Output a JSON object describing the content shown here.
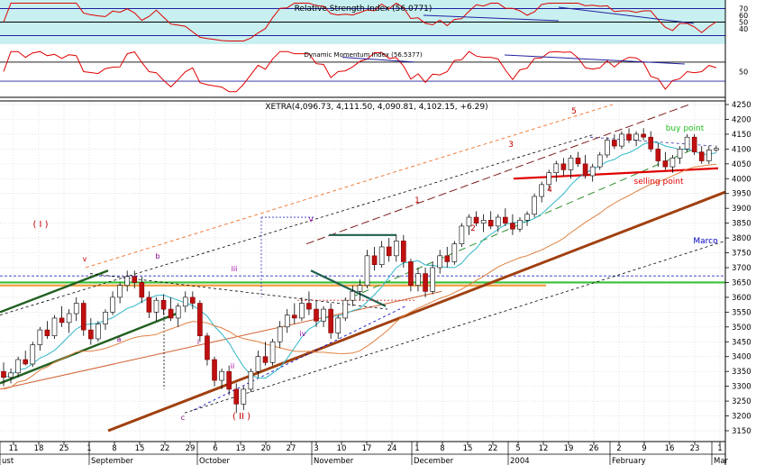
{
  "chart_data": [
    {
      "type": "line",
      "title": "Relative Strength Index (56.0771)",
      "value": 56.0771,
      "yticks": [
        70,
        60,
        50,
        40
      ],
      "ylim": [
        20,
        80
      ],
      "upper_band": 70,
      "lower_band": 30
    },
    {
      "type": "line",
      "title": "Dynamic Momentum Index (56.5377)",
      "value": 56.5377,
      "yticks": [
        50
      ],
      "ylim": [
        0,
        100
      ],
      "upper_band": 70,
      "lower_band": 30
    },
    {
      "type": "candlestick",
      "title": "XETRA(4,096.73, 4,111.50, 4,090.81, 4,102.15, +6.29)",
      "last": {
        "open": 4096.73,
        "high": 4111.5,
        "low": 4090.81,
        "close": 4102.15,
        "change": 6.29
      },
      "ylim": [
        3150,
        4250
      ],
      "yticks": [
        3150,
        3200,
        3250,
        3300,
        3350,
        3400,
        3450,
        3500,
        3550,
        3600,
        3650,
        3700,
        3750,
        3800,
        3850,
        3900,
        3950,
        4000,
        4050,
        4100,
        4150,
        4200,
        4250
      ],
      "xticks": [
        "11",
        "18",
        "25",
        "1",
        "8",
        "15",
        "22",
        "29",
        "6",
        "13",
        "20",
        "27",
        "3",
        "10",
        "17",
        "24",
        "1",
        "8",
        "15",
        "22",
        "5",
        "12",
        "19",
        "26",
        "2",
        "9",
        "16",
        "23",
        "1"
      ],
      "month_labels": [
        "ust",
        "September",
        "October",
        "November",
        "December",
        "2004",
        "February",
        "Mar"
      ],
      "annotations": [
        "( I )",
        "( II )",
        "v",
        "b",
        "a",
        "c",
        "i",
        "ii",
        "iii",
        "iv",
        "v",
        "1",
        "2",
        "3",
        "4",
        "5",
        "buy point",
        "selling point",
        "Marco"
      ],
      "grid": true,
      "candles": [
        {
          "o": 3350,
          "h": 3380,
          "l": 3300,
          "c": 3330
        },
        {
          "o": 3330,
          "h": 3360,
          "l": 3310,
          "c": 3345
        },
        {
          "o": 3345,
          "h": 3400,
          "l": 3330,
          "c": 3390
        },
        {
          "o": 3390,
          "h": 3420,
          "l": 3370,
          "c": 3375
        },
        {
          "o": 3375,
          "h": 3450,
          "l": 3365,
          "c": 3440
        },
        {
          "o": 3440,
          "h": 3500,
          "l": 3420,
          "c": 3490
        },
        {
          "o": 3490,
          "h": 3520,
          "l": 3460,
          "c": 3470
        },
        {
          "o": 3470,
          "h": 3540,
          "l": 3460,
          "c": 3530
        },
        {
          "o": 3530,
          "h": 3570,
          "l": 3500,
          "c": 3515
        },
        {
          "o": 3515,
          "h": 3560,
          "l": 3480,
          "c": 3545
        },
        {
          "o": 3545,
          "h": 3600,
          "l": 3520,
          "c": 3580
        },
        {
          "o": 3580,
          "h": 3590,
          "l": 3470,
          "c": 3490
        },
        {
          "o": 3490,
          "h": 3530,
          "l": 3440,
          "c": 3460
        },
        {
          "o": 3460,
          "h": 3520,
          "l": 3450,
          "c": 3510
        },
        {
          "o": 3510,
          "h": 3560,
          "l": 3490,
          "c": 3550
        },
        {
          "o": 3550,
          "h": 3620,
          "l": 3540,
          "c": 3600
        },
        {
          "o": 3600,
          "h": 3650,
          "l": 3580,
          "c": 3640
        },
        {
          "o": 3640,
          "h": 3690,
          "l": 3620,
          "c": 3670
        },
        {
          "o": 3670,
          "h": 3690,
          "l": 3630,
          "c": 3650
        },
        {
          "o": 3650,
          "h": 3670,
          "l": 3580,
          "c": 3600
        },
        {
          "o": 3600,
          "h": 3620,
          "l": 3530,
          "c": 3550
        },
        {
          "o": 3550,
          "h": 3600,
          "l": 3520,
          "c": 3590
        },
        {
          "o": 3590,
          "h": 3610,
          "l": 3540,
          "c": 3560
        },
        {
          "o": 3560,
          "h": 3600,
          "l": 3520,
          "c": 3530
        },
        {
          "o": 3530,
          "h": 3580,
          "l": 3500,
          "c": 3570
        },
        {
          "o": 3570,
          "h": 3620,
          "l": 3550,
          "c": 3600
        },
        {
          "o": 3600,
          "h": 3620,
          "l": 3560,
          "c": 3580
        },
        {
          "o": 3580,
          "h": 3590,
          "l": 3450,
          "c": 3470
        },
        {
          "o": 3470,
          "h": 3480,
          "l": 3370,
          "c": 3390
        },
        {
          "o": 3390,
          "h": 3400,
          "l": 3300,
          "c": 3320
        },
        {
          "o": 3320,
          "h": 3360,
          "l": 3290,
          "c": 3350
        },
        {
          "o": 3350,
          "h": 3370,
          "l": 3270,
          "c": 3290
        },
        {
          "o": 3290,
          "h": 3310,
          "l": 3210,
          "c": 3240
        },
        {
          "o": 3240,
          "h": 3300,
          "l": 3220,
          "c": 3290
        },
        {
          "o": 3290,
          "h": 3360,
          "l": 3280,
          "c": 3350
        },
        {
          "o": 3350,
          "h": 3420,
          "l": 3330,
          "c": 3400
        },
        {
          "o": 3400,
          "h": 3450,
          "l": 3370,
          "c": 3380
        },
        {
          "o": 3380,
          "h": 3460,
          "l": 3370,
          "c": 3450
        },
        {
          "o": 3450,
          "h": 3520,
          "l": 3430,
          "c": 3500
        },
        {
          "o": 3500,
          "h": 3560,
          "l": 3480,
          "c": 3540
        },
        {
          "o": 3540,
          "h": 3580,
          "l": 3510,
          "c": 3530
        },
        {
          "o": 3530,
          "h": 3600,
          "l": 3520,
          "c": 3580
        },
        {
          "o": 3580,
          "h": 3620,
          "l": 3540,
          "c": 3560
        },
        {
          "o": 3560,
          "h": 3590,
          "l": 3500,
          "c": 3520
        },
        {
          "o": 3520,
          "h": 3570,
          "l": 3500,
          "c": 3560
        },
        {
          "o": 3560,
          "h": 3580,
          "l": 3460,
          "c": 3480
        },
        {
          "o": 3480,
          "h": 3540,
          "l": 3460,
          "c": 3530
        },
        {
          "o": 3530,
          "h": 3600,
          "l": 3520,
          "c": 3590
        },
        {
          "o": 3590,
          "h": 3640,
          "l": 3570,
          "c": 3620
        },
        {
          "o": 3620,
          "h": 3660,
          "l": 3590,
          "c": 3640
        },
        {
          "o": 3640,
          "h": 3760,
          "l": 3630,
          "c": 3740
        },
        {
          "o": 3740,
          "h": 3770,
          "l": 3690,
          "c": 3710
        },
        {
          "o": 3710,
          "h": 3790,
          "l": 3700,
          "c": 3770
        },
        {
          "o": 3770,
          "h": 3800,
          "l": 3720,
          "c": 3740
        },
        {
          "o": 3740,
          "h": 3810,
          "l": 3720,
          "c": 3790
        },
        {
          "o": 3790,
          "h": 3810,
          "l": 3700,
          "c": 3720
        },
        {
          "o": 3720,
          "h": 3730,
          "l": 3620,
          "c": 3640
        },
        {
          "o": 3640,
          "h": 3700,
          "l": 3620,
          "c": 3680
        },
        {
          "o": 3680,
          "h": 3700,
          "l": 3600,
          "c": 3620
        },
        {
          "o": 3620,
          "h": 3720,
          "l": 3610,
          "c": 3700
        },
        {
          "o": 3700,
          "h": 3760,
          "l": 3680,
          "c": 3740
        },
        {
          "o": 3740,
          "h": 3770,
          "l": 3700,
          "c": 3720
        },
        {
          "o": 3720,
          "h": 3790,
          "l": 3710,
          "c": 3780
        },
        {
          "o": 3780,
          "h": 3850,
          "l": 3770,
          "c": 3840
        },
        {
          "o": 3840,
          "h": 3880,
          "l": 3810,
          "c": 3870
        },
        {
          "o": 3870,
          "h": 3890,
          "l": 3840,
          "c": 3850
        },
        {
          "o": 3850,
          "h": 3880,
          "l": 3820,
          "c": 3860
        },
        {
          "o": 3860,
          "h": 3890,
          "l": 3830,
          "c": 3840
        },
        {
          "o": 3840,
          "h": 3880,
          "l": 3820,
          "c": 3870
        },
        {
          "o": 3870,
          "h": 3900,
          "l": 3840,
          "c": 3850
        },
        {
          "o": 3850,
          "h": 3880,
          "l": 3810,
          "c": 3830
        },
        {
          "o": 3830,
          "h": 3870,
          "l": 3820,
          "c": 3860
        },
        {
          "o": 3860,
          "h": 3890,
          "l": 3840,
          "c": 3880
        },
        {
          "o": 3880,
          "h": 3950,
          "l": 3870,
          "c": 3940
        },
        {
          "o": 3940,
          "h": 3990,
          "l": 3920,
          "c": 3980
        },
        {
          "o": 3980,
          "h": 4030,
          "l": 3960,
          "c": 4020
        },
        {
          "o": 4020,
          "h": 4060,
          "l": 3990,
          "c": 4050
        },
        {
          "o": 4050,
          "h": 4070,
          "l": 4010,
          "c": 4030
        },
        {
          "o": 4030,
          "h": 4080,
          "l": 4000,
          "c": 4070
        },
        {
          "o": 4070,
          "h": 4090,
          "l": 4040,
          "c": 4050
        },
        {
          "o": 4050,
          "h": 4080,
          "l": 4000,
          "c": 4010
        },
        {
          "o": 4010,
          "h": 4050,
          "l": 3990,
          "c": 4040
        },
        {
          "o": 4040,
          "h": 4090,
          "l": 4030,
          "c": 4080
        },
        {
          "o": 4080,
          "h": 4140,
          "l": 4070,
          "c": 4130
        },
        {
          "o": 4130,
          "h": 4150,
          "l": 4100,
          "c": 4110
        },
        {
          "o": 4110,
          "h": 4160,
          "l": 4100,
          "c": 4150
        },
        {
          "o": 4150,
          "h": 4170,
          "l": 4120,
          "c": 4130
        },
        {
          "o": 4130,
          "h": 4160,
          "l": 4110,
          "c": 4150
        },
        {
          "o": 4150,
          "h": 4170,
          "l": 4130,
          "c": 4140
        },
        {
          "o": 4140,
          "h": 4160,
          "l": 4090,
          "c": 4100
        },
        {
          "o": 4100,
          "h": 4120,
          "l": 4040,
          "c": 4060
        },
        {
          "o": 4060,
          "h": 4090,
          "l": 4030,
          "c": 4040
        },
        {
          "o": 4040,
          "h": 4080,
          "l": 4020,
          "c": 4070
        },
        {
          "o": 4070,
          "h": 4110,
          "l": 4050,
          "c": 4100
        },
        {
          "o": 4100,
          "h": 4150,
          "l": 4090,
          "c": 4140
        },
        {
          "o": 4140,
          "h": 4150,
          "l": 4080,
          "c": 4090
        },
        {
          "o": 4090,
          "h": 4110,
          "l": 4050,
          "c": 4060
        },
        {
          "o": 4060,
          "h": 4110,
          "l": 4050,
          "c": 4096.73
        },
        {
          "o": 4096.73,
          "h": 4111.5,
          "l": 4090.81,
          "c": 4102.15
        }
      ]
    }
  ]
}
